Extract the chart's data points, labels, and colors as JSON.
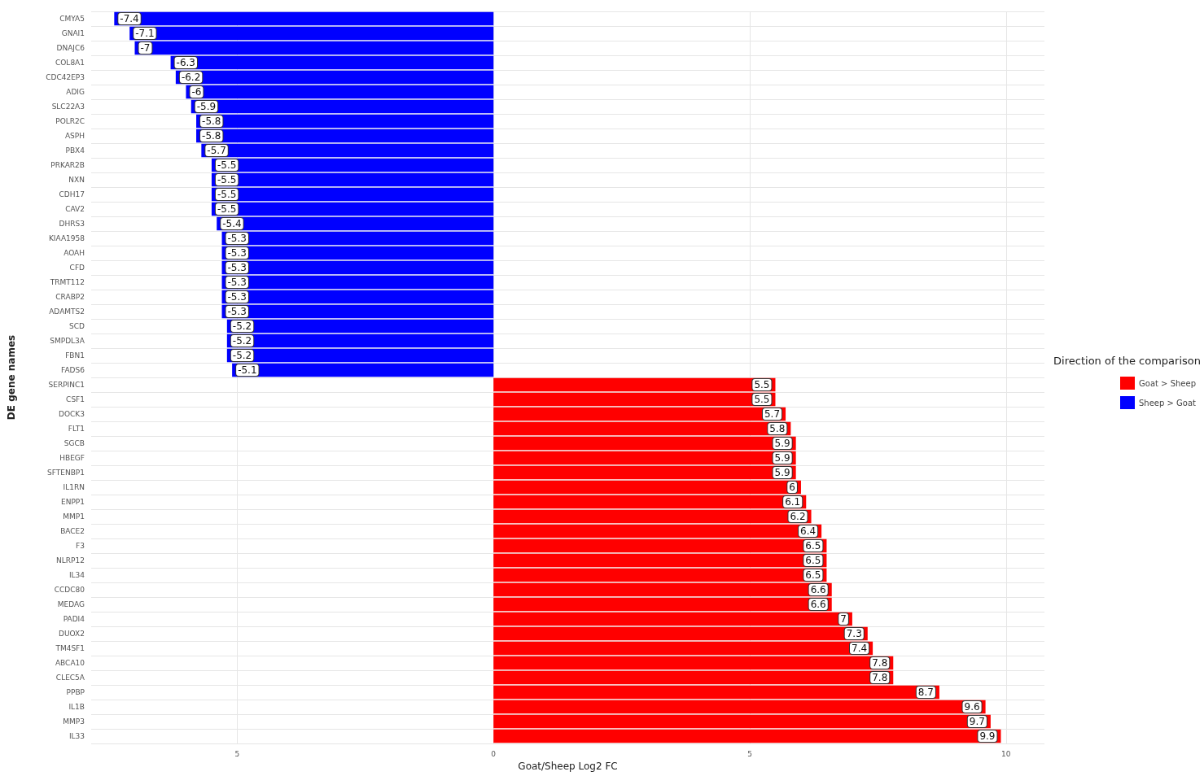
{
  "chart_data": {
    "type": "bar",
    "orientation": "horizontal",
    "stacked": true,
    "xlabel": "Goat/Sheep Log2 FC",
    "ylabel": "DE gene names",
    "legend_title": "Direction of the comparison",
    "legend": "right",
    "grid": true,
    "data_labels": true,
    "xlim": [
      -7.85,
      10.75
    ],
    "xticks": [
      {
        "value": -5,
        "label": "5"
      },
      0,
      5,
      10
    ],
    "categories": [
      "CMYA5",
      "GNAI1",
      "DNAJC6",
      "COL8A1",
      "CDC42EP3",
      "ADIG",
      "SLC22A3",
      "POLR2C",
      "ASPH",
      "PBX4",
      "PRKAR2B",
      "NXN",
      "CDH17",
      "CAV2",
      "DHRS3",
      "KIAA1958",
      "AOAH",
      "CFD",
      "TRMT112",
      "CRABP2",
      "ADAMTS2",
      "SCD",
      "SMPDL3A",
      "FBN1",
      "FADS6",
      "SERPINC1",
      "CSF1",
      "DOCK3",
      "FLT1",
      "SGCB",
      "HBEGF",
      "SFTENBP1",
      "IL1RN",
      "ENPP1",
      "MMP1",
      "BACE2",
      "F3",
      "NLRP12",
      "IL34",
      "CCDC80",
      "MEDAG",
      "PADI4",
      "DUOX2",
      "TM4SF1",
      "ABCA10",
      "CLEC5A",
      "PPBP",
      "IL1B",
      "MMP3",
      "IL33"
    ],
    "series": [
      {
        "name": "Goat > Sheep",
        "color": "#ff0000",
        "values": [
          null,
          null,
          null,
          null,
          null,
          null,
          null,
          null,
          null,
          null,
          null,
          null,
          null,
          null,
          null,
          null,
          null,
          null,
          null,
          null,
          null,
          null,
          null,
          null,
          null,
          5.5,
          5.5,
          5.7,
          5.8,
          5.9,
          5.9,
          5.9,
          6,
          6.1,
          6.2,
          6.4,
          6.5,
          6.5,
          6.5,
          6.6,
          6.6,
          7,
          7.3,
          7.4,
          7.8,
          7.8,
          8.7,
          9.6,
          9.7,
          9.9
        ]
      },
      {
        "name": "Sheep > Goat",
        "color": "#0000ff",
        "values": [
          -7.4,
          -7.1,
          -7,
          -6.3,
          -6.2,
          -6,
          -5.9,
          -5.8,
          -5.8,
          -5.7,
          -5.5,
          -5.5,
          -5.5,
          -5.5,
          -5.4,
          -5.3,
          -5.3,
          -5.3,
          -5.3,
          -5.3,
          -5.3,
          -5.2,
          -5.2,
          -5.2,
          -5.1,
          null,
          null,
          null,
          null,
          null,
          null,
          null,
          null,
          null,
          null,
          null,
          null,
          null,
          null,
          null,
          null,
          null,
          null,
          null,
          null,
          null,
          null,
          null,
          null,
          null
        ]
      }
    ]
  }
}
